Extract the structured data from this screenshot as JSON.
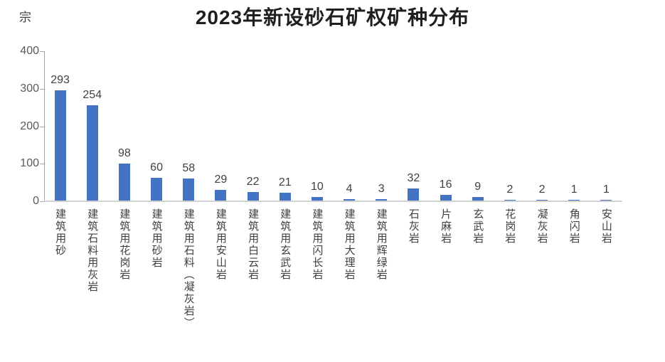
{
  "chart_data": {
    "type": "bar",
    "title": "2023年新设砂石矿权矿种分布",
    "unit": "宗",
    "categories": [
      "建筑用砂",
      "建筑石料用灰岩",
      "建筑用花岗岩",
      "建筑用砂岩",
      "建筑用石料（凝灰岩）",
      "建筑用安山岩",
      "建筑用白云岩",
      "建筑用玄武岩",
      "建筑用闪长岩",
      "建筑用大理岩",
      "建筑用辉绿岩",
      "石灰岩",
      "片麻岩",
      "玄武岩",
      "花岗岩",
      "凝灰岩",
      "角闪岩",
      "安山岩"
    ],
    "values": [
      293,
      254,
      98,
      60,
      58,
      29,
      22,
      21,
      10,
      4,
      3,
      32,
      16,
      9,
      2,
      2,
      1,
      1
    ],
    "xlabel": "",
    "ylabel": "宗",
    "ylim": [
      0,
      400
    ],
    "yticks": [
      0,
      100,
      200,
      300,
      400
    ],
    "grid": false,
    "legend_position": "none",
    "bar_color": "#4472C4",
    "axis_color": "#a6a6a6",
    "baseline_color": "#d0d0d0",
    "tick_label_color": "#595959",
    "data_label_color": "#404040",
    "category_label_color": "#404040",
    "title_color": "#1f1f1f"
  }
}
